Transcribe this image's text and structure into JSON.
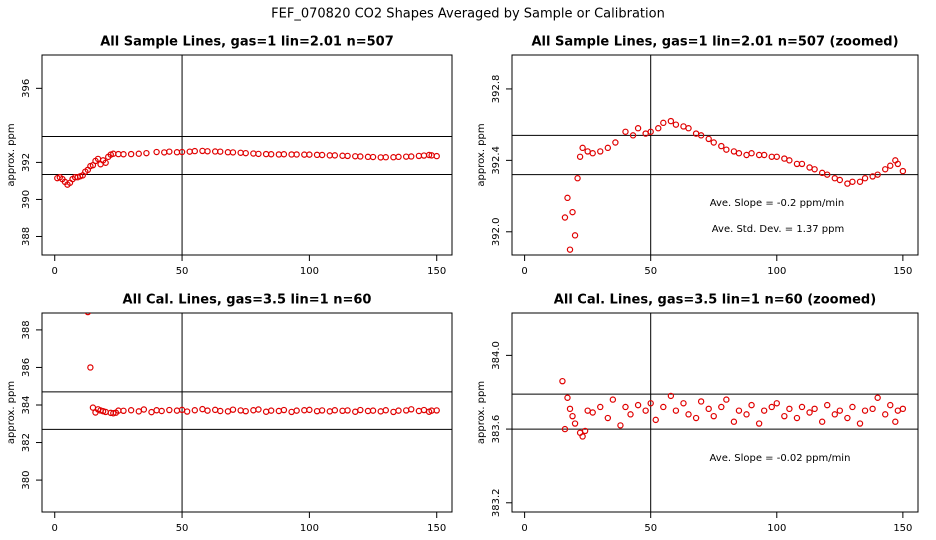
{
  "title": "FEF_070820  CO2 Shapes Averaged by Sample or Calibration",
  "chart_data": [
    {
      "type": "scatter",
      "title": "All Sample Lines, gas=1 lin=2.01 n=507",
      "y_label": "approx. ppm",
      "x": [
        1,
        2,
        3,
        4,
        5,
        6,
        7,
        8,
        9,
        10,
        11,
        12,
        13,
        14,
        15,
        16,
        17,
        18,
        19,
        20,
        21,
        22,
        23,
        25,
        27,
        30,
        33,
        36,
        40,
        43,
        45,
        48,
        50,
        53,
        55,
        58,
        60,
        63,
        65,
        68,
        70,
        73,
        75,
        78,
        80,
        83,
        85,
        88,
        90,
        93,
        95,
        98,
        100,
        103,
        105,
        108,
        110,
        113,
        115,
        118,
        120,
        123,
        125,
        128,
        130,
        133,
        135,
        138,
        140,
        143,
        145,
        147,
        148,
        150
      ],
      "series": [
        {
          "color": "#e00000",
          "values": [
            391.15,
            391.2,
            391.1,
            390.95,
            390.8,
            390.9,
            391.1,
            391.2,
            391.2,
            391.25,
            391.3,
            391.5,
            391.6,
            391.8,
            391.85,
            392.08,
            392.19,
            391.9,
            392.11,
            391.98,
            392.3,
            392.42,
            392.47,
            392.45,
            392.44,
            392.45,
            392.47,
            392.5,
            392.56,
            392.54,
            392.58,
            392.55,
            392.56,
            392.58,
            392.61,
            392.62,
            392.6,
            392.59,
            392.58,
            392.55,
            392.54,
            392.52,
            392.5,
            392.48,
            392.46,
            392.45,
            392.44,
            392.43,
            392.44,
            392.43,
            392.43,
            392.42,
            392.42,
            392.41,
            392.4,
            392.38,
            392.38,
            392.36,
            392.35,
            392.33,
            392.32,
            392.3,
            392.29,
            392.27,
            392.28,
            392.28,
            392.3,
            392.31,
            392.32,
            392.35,
            392.37,
            392.4,
            392.38,
            392.34
          ]
        }
      ],
      "xlim": [
        -5,
        156
      ],
      "ylim": [
        387,
        397.8
      ],
      "xticks": [
        0,
        50,
        100,
        150
      ],
      "yticks": [
        388,
        390,
        392,
        396
      ],
      "hlines": [
        393.4,
        391.35
      ],
      "vlines": [
        50
      ]
    },
    {
      "type": "scatter",
      "title": "All Sample Lines, gas=1 lin=2.01 n=507 (zoomed)",
      "y_label": "approx. ppm",
      "x": [
        16,
        17,
        18,
        19,
        20,
        21,
        22,
        23,
        25,
        27,
        30,
        33,
        36,
        40,
        43,
        45,
        48,
        50,
        53,
        55,
        58,
        60,
        63,
        65,
        68,
        70,
        73,
        75,
        78,
        80,
        83,
        85,
        88,
        90,
        93,
        95,
        98,
        100,
        103,
        105,
        108,
        110,
        113,
        115,
        118,
        120,
        123,
        125,
        128,
        130,
        133,
        135,
        138,
        140,
        143,
        145,
        147,
        148,
        150
      ],
      "series": [
        {
          "color": "#e00000",
          "values": [
            392.08,
            392.19,
            391.9,
            392.11,
            391.98,
            392.3,
            392.42,
            392.47,
            392.45,
            392.44,
            392.45,
            392.47,
            392.5,
            392.56,
            392.54,
            392.58,
            392.55,
            392.56,
            392.58,
            392.61,
            392.62,
            392.6,
            392.59,
            392.58,
            392.55,
            392.54,
            392.52,
            392.5,
            392.48,
            392.46,
            392.45,
            392.44,
            392.43,
            392.44,
            392.43,
            392.43,
            392.42,
            392.42,
            392.41,
            392.4,
            392.38,
            392.38,
            392.36,
            392.35,
            392.33,
            392.32,
            392.3,
            392.29,
            392.27,
            392.28,
            392.28,
            392.3,
            392.31,
            392.32,
            392.35,
            392.37,
            392.4,
            392.38,
            392.34
          ]
        }
      ],
      "xlim": [
        -5,
        156
      ],
      "ylim": [
        391.87,
        392.99
      ],
      "xticks": [
        0,
        50,
        100,
        150
      ],
      "yticks": [
        {
          "value": 392.0,
          "label": "392.0"
        },
        {
          "value": 392.4,
          "label": "392.4"
        },
        {
          "value": 392.8,
          "label": "392.8"
        }
      ],
      "hlines": [
        392.54,
        392.32
      ],
      "vlines": [
        50
      ],
      "annotations": [
        "Ave. Slope =  -0.2  ppm/min",
        "Ave. Std. Dev. =  1.37  ppm"
      ]
    },
    {
      "type": "scatter",
      "title": "All Cal. Lines, gas=3.5 lin=1 n=60",
      "y_label": "approx. ppm",
      "x": [
        13,
        14,
        15,
        16,
        17,
        18,
        19,
        20,
        22,
        23,
        24,
        25,
        27,
        30,
        33,
        35,
        38,
        40,
        42,
        45,
        48,
        50,
        52,
        55,
        58,
        60,
        63,
        65,
        68,
        70,
        73,
        75,
        78,
        80,
        83,
        85,
        88,
        90,
        93,
        95,
        98,
        100,
        103,
        105,
        108,
        110,
        113,
        115,
        118,
        120,
        123,
        125,
        128,
        130,
        133,
        135,
        138,
        140,
        143,
        145,
        147,
        148,
        150
      ],
      "series": [
        {
          "color": "#e00000",
          "values": [
            388.95,
            386.0,
            383.86,
            383.6,
            383.77,
            383.71,
            383.67,
            383.63,
            383.58,
            383.56,
            383.59,
            383.7,
            383.69,
            383.72,
            383.66,
            383.76,
            383.62,
            383.72,
            383.68,
            383.73,
            383.7,
            383.74,
            383.65,
            383.72,
            383.78,
            383.7,
            383.74,
            383.68,
            383.66,
            383.75,
            383.71,
            383.67,
            383.72,
            383.76,
            383.64,
            383.7,
            383.68,
            383.73,
            383.63,
            383.7,
            383.72,
            383.74,
            383.67,
            383.71,
            383.66,
            383.72,
            383.69,
            383.71,
            383.64,
            383.73,
            383.68,
            383.7,
            383.66,
            383.72,
            383.63,
            383.7,
            383.71,
            383.77,
            383.68,
            383.73,
            383.64,
            383.7,
            383.71
          ]
        }
      ],
      "xlim": [
        -5,
        156
      ],
      "ylim": [
        378.3,
        388.9
      ],
      "xticks": [
        0,
        50,
        100,
        150
      ],
      "yticks": [
        380,
        382,
        384,
        386,
        388
      ],
      "hlines": [
        384.7,
        382.7
      ],
      "vlines": [
        50
      ]
    },
    {
      "type": "scatter",
      "title": "All Cal. Lines, gas=3.5 lin=1 n=60 (zoomed)",
      "y_label": "approx. ppm",
      "x": [
        15,
        16,
        17,
        18,
        19,
        20,
        22,
        23,
        24,
        25,
        27,
        30,
        33,
        35,
        38,
        40,
        42,
        45,
        48,
        50,
        52,
        55,
        58,
        60,
        63,
        65,
        68,
        70,
        73,
        75,
        78,
        80,
        83,
        85,
        88,
        90,
        93,
        95,
        98,
        100,
        103,
        105,
        108,
        110,
        113,
        115,
        118,
        120,
        123,
        125,
        128,
        130,
        133,
        135,
        138,
        140,
        143,
        145,
        147,
        148,
        150
      ],
      "series": [
        {
          "color": "#e00000",
          "values": [
            383.86,
            383.6,
            383.77,
            383.71,
            383.67,
            383.63,
            383.58,
            383.56,
            383.59,
            383.7,
            383.69,
            383.72,
            383.66,
            383.76,
            383.62,
            383.72,
            383.68,
            383.73,
            383.7,
            383.74,
            383.65,
            383.72,
            383.78,
            383.7,
            383.74,
            383.68,
            383.66,
            383.75,
            383.71,
            383.67,
            383.72,
            383.76,
            383.64,
            383.7,
            383.68,
            383.73,
            383.63,
            383.7,
            383.72,
            383.74,
            383.67,
            383.71,
            383.66,
            383.72,
            383.69,
            383.71,
            383.64,
            383.73,
            383.68,
            383.7,
            383.66,
            383.72,
            383.63,
            383.7,
            383.71,
            383.77,
            383.68,
            383.73,
            383.64,
            383.7,
            383.71
          ]
        }
      ],
      "xlim": [
        -5,
        156
      ],
      "ylim": [
        383.15,
        384.23
      ],
      "xticks": [
        0,
        50,
        100,
        150
      ],
      "yticks": [
        {
          "value": 383.2,
          "label": "383.2"
        },
        {
          "value": 383.6,
          "label": "383.6"
        },
        {
          "value": 384.0,
          "label": "384.0"
        }
      ],
      "hlines": [
        383.79,
        383.6
      ],
      "vlines": [
        50
      ],
      "annotations": [
        "Ave. Slope =  -0.02  ppm/min"
      ]
    }
  ]
}
